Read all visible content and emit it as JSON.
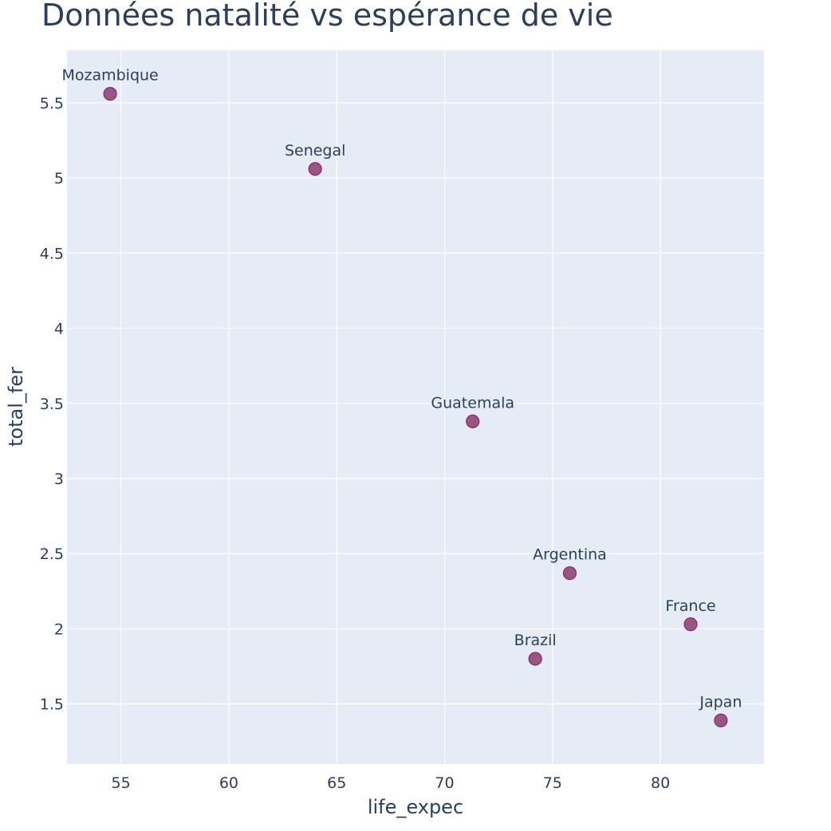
{
  "chart_data": {
    "type": "scatter",
    "title": "Données natalité vs espérance de vie",
    "xlabel": "life_expec",
    "ylabel": "total_fer",
    "xlim": [
      52.5,
      84.8
    ],
    "ylim": [
      1.1,
      5.85
    ],
    "x_ticks": [
      55,
      60,
      65,
      70,
      75,
      80
    ],
    "y_ticks": [
      1.5,
      2,
      2.5,
      3,
      3.5,
      4,
      4.5,
      5,
      5.5
    ],
    "y_tick_labels": [
      "1.5",
      "2",
      "2.5",
      "3",
      "3.5",
      "4",
      "4.5",
      "5",
      "5.5"
    ],
    "grid": true,
    "colors": {
      "plot_background": "#e5ecf6",
      "marker_fill": "#9c5480",
      "marker_stroke": "#7b2d7e",
      "text": "#2a3f5f"
    },
    "points": [
      {
        "label": "Mozambique",
        "x": 54.5,
        "y": 5.56
      },
      {
        "label": "Senegal",
        "x": 64.0,
        "y": 5.06
      },
      {
        "label": "Guatemala",
        "x": 71.3,
        "y": 3.38
      },
      {
        "label": "Argentina",
        "x": 75.8,
        "y": 2.37
      },
      {
        "label": "France",
        "x": 81.4,
        "y": 2.03
      },
      {
        "label": "Brazil",
        "x": 74.2,
        "y": 1.8
      },
      {
        "label": "Japan",
        "x": 82.8,
        "y": 1.39
      }
    ]
  }
}
